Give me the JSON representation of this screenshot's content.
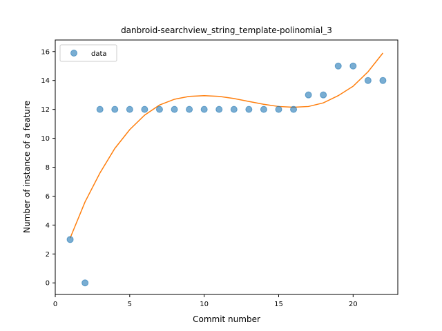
{
  "chart_data": {
    "type": "scatter",
    "title": "danbroid-searchview_string_template-polinomial_3",
    "xlabel": "Commit number",
    "ylabel": "Number of instance of a feature",
    "xlim": [
      0,
      23
    ],
    "ylim": [
      -0.8,
      16.8
    ],
    "xticks": [
      0,
      5,
      10,
      15,
      20
    ],
    "yticks": [
      0,
      2,
      4,
      6,
      8,
      10,
      12,
      14,
      16
    ],
    "legend": "top-left",
    "grid": false,
    "series": [
      {
        "name": "data",
        "kind": "scatter",
        "color": "#1f77b4",
        "x": [
          1,
          2,
          3,
          4,
          5,
          6,
          7,
          8,
          9,
          10,
          11,
          12,
          13,
          14,
          15,
          16,
          17,
          18,
          19,
          20,
          21,
          22
        ],
        "y": [
          3,
          0,
          12,
          12,
          12,
          12,
          12,
          12,
          12,
          12,
          12,
          12,
          12,
          12,
          12,
          12,
          13,
          13,
          15,
          15,
          14,
          14
        ]
      },
      {
        "kind": "line",
        "color": "#ff7f0e",
        "x": [
          1,
          2,
          3,
          4,
          5,
          6,
          7,
          8,
          9,
          10,
          11,
          12,
          13,
          14,
          15,
          16,
          17,
          18,
          19,
          20,
          21,
          22
        ],
        "y": [
          3.1,
          5.6,
          7.6,
          9.3,
          10.6,
          11.6,
          12.3,
          12.7,
          12.9,
          12.95,
          12.9,
          12.75,
          12.55,
          12.35,
          12.2,
          12.15,
          12.2,
          12.45,
          12.95,
          13.6,
          14.6,
          15.9
        ]
      }
    ]
  }
}
